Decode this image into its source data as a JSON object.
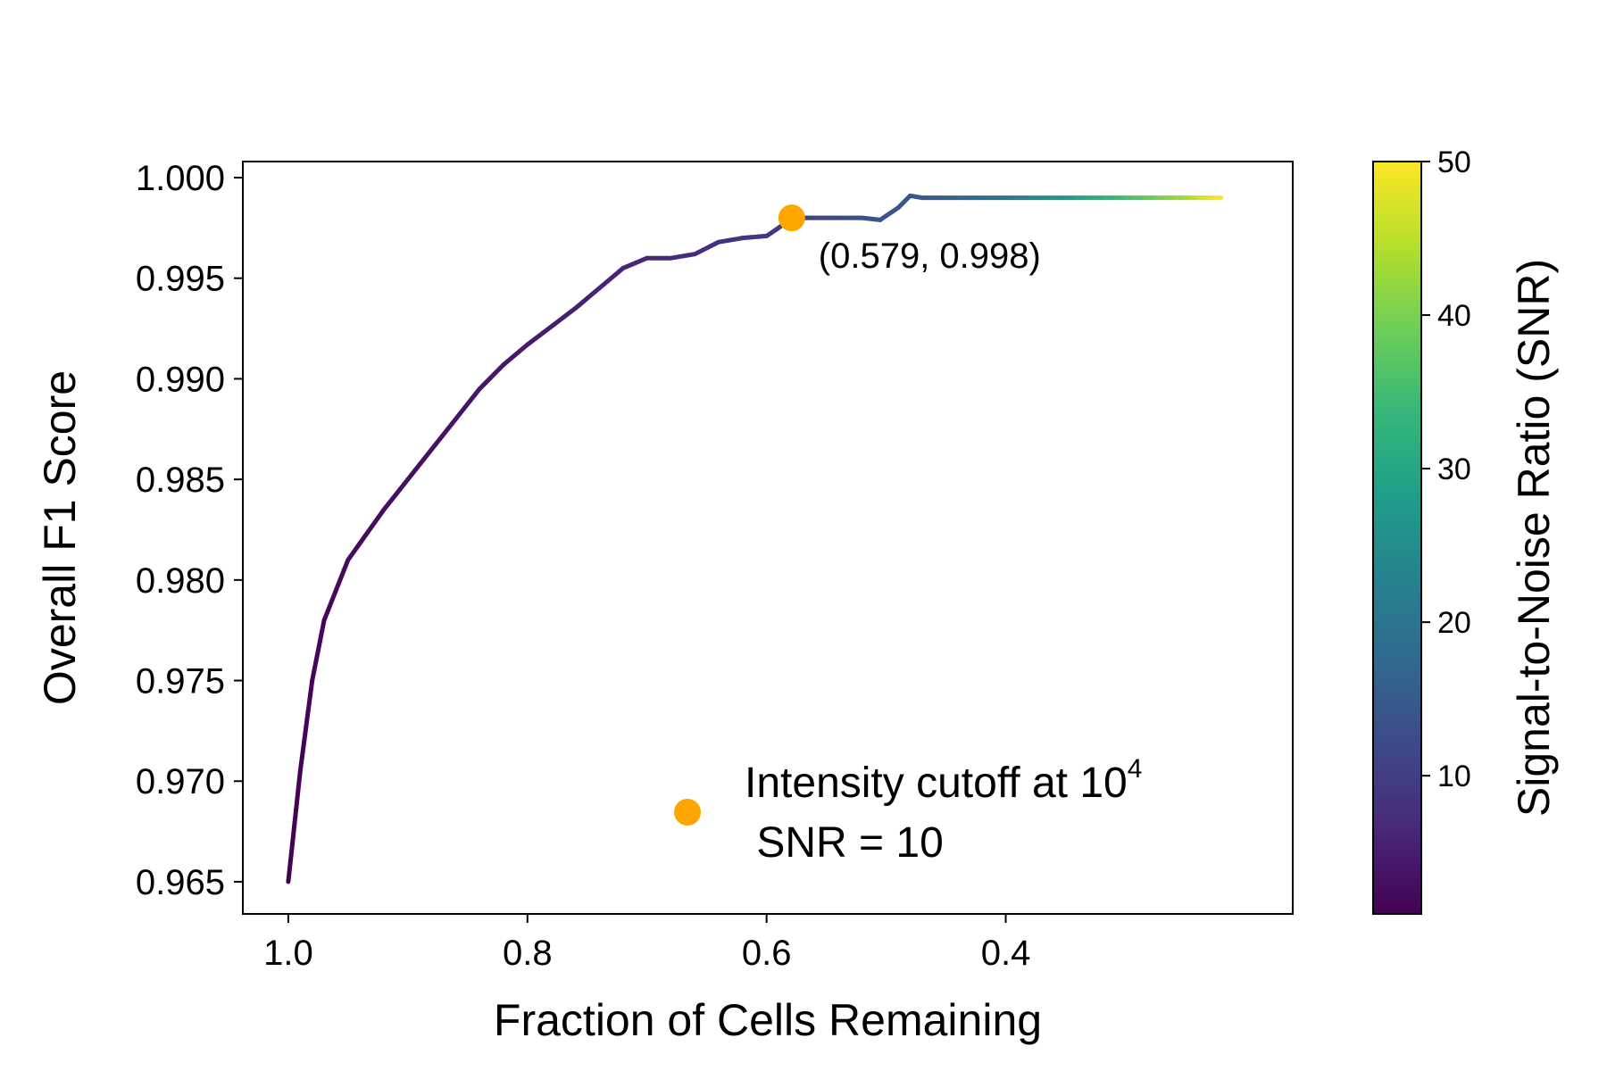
{
  "chart_data": {
    "type": "line",
    "title": "",
    "xlabel": "Fraction of Cells Remaining",
    "ylabel": "Overall F1 Score",
    "xlim": [
      1.038,
      0.16
    ],
    "ylim": [
      0.9634,
      1.0008
    ],
    "xticks": [
      1.0,
      0.8,
      0.6,
      0.4
    ],
    "xtick_labels": [
      "1.0",
      "0.8",
      "0.6",
      "0.4"
    ],
    "yticks": [
      0.965,
      0.97,
      0.975,
      0.98,
      0.985,
      0.99,
      0.995,
      1.0
    ],
    "ytick_labels": [
      "0.965",
      "0.970",
      "0.975",
      "0.980",
      "0.985",
      "0.990",
      "0.995",
      "1.000"
    ],
    "grid": false,
    "x_axis_inverted": true,
    "series": [
      {
        "colored_by": "snr",
        "colormap": "viridis",
        "points": [
          {
            "x": 1.0,
            "y": 0.965,
            "snr": 1
          },
          {
            "x": 0.99,
            "y": 0.9705,
            "snr": 1.3
          },
          {
            "x": 0.98,
            "y": 0.975,
            "snr": 1.6
          },
          {
            "x": 0.97,
            "y": 0.978,
            "snr": 1.9
          },
          {
            "x": 0.95,
            "y": 0.981,
            "snr": 2.3
          },
          {
            "x": 0.92,
            "y": 0.9835,
            "snr": 2.7
          },
          {
            "x": 0.9,
            "y": 0.985,
            "snr": 3.0
          },
          {
            "x": 0.88,
            "y": 0.9865,
            "snr": 3.3
          },
          {
            "x": 0.86,
            "y": 0.988,
            "snr": 3.6
          },
          {
            "x": 0.84,
            "y": 0.9895,
            "snr": 3.9
          },
          {
            "x": 0.82,
            "y": 0.9907,
            "snr": 4.2
          },
          {
            "x": 0.8,
            "y": 0.9917,
            "snr": 4.5
          },
          {
            "x": 0.78,
            "y": 0.9926,
            "snr": 4.9
          },
          {
            "x": 0.76,
            "y": 0.9935,
            "snr": 5.3
          },
          {
            "x": 0.74,
            "y": 0.9945,
            "snr": 5.7
          },
          {
            "x": 0.72,
            "y": 0.9955,
            "snr": 6.1
          },
          {
            "x": 0.7,
            "y": 0.996,
            "snr": 6.5
          },
          {
            "x": 0.68,
            "y": 0.996,
            "snr": 6.9
          },
          {
            "x": 0.66,
            "y": 0.9962,
            "snr": 7.4
          },
          {
            "x": 0.64,
            "y": 0.9968,
            "snr": 7.9
          },
          {
            "x": 0.62,
            "y": 0.997,
            "snr": 8.4
          },
          {
            "x": 0.6,
            "y": 0.9971,
            "snr": 9.0
          },
          {
            "x": 0.59,
            "y": 0.9975,
            "snr": 9.5
          },
          {
            "x": 0.579,
            "y": 0.998,
            "snr": 10
          },
          {
            "x": 0.56,
            "y": 0.998,
            "snr": 11
          },
          {
            "x": 0.54,
            "y": 0.998,
            "snr": 12
          },
          {
            "x": 0.52,
            "y": 0.998,
            "snr": 12.8
          },
          {
            "x": 0.505,
            "y": 0.9979,
            "snr": 13.5
          },
          {
            "x": 0.49,
            "y": 0.9985,
            "snr": 14
          },
          {
            "x": 0.48,
            "y": 0.9991,
            "snr": 14.5
          },
          {
            "x": 0.47,
            "y": 0.999,
            "snr": 15
          },
          {
            "x": 0.45,
            "y": 0.999,
            "snr": 16
          },
          {
            "x": 0.4,
            "y": 0.999,
            "snr": 20
          },
          {
            "x": 0.35,
            "y": 0.999,
            "snr": 27
          },
          {
            "x": 0.3,
            "y": 0.999,
            "snr": 35
          },
          {
            "x": 0.25,
            "y": 0.999,
            "snr": 43
          },
          {
            "x": 0.22,
            "y": 0.999,
            "snr": 50
          }
        ]
      }
    ],
    "highlight_point": {
      "x": 0.579,
      "y": 0.998,
      "color": "#FFA500"
    },
    "annotation": "(0.579, 0.998)",
    "legend": {
      "placement": "lower-right",
      "marker_color": "#FFA500",
      "line1_prefix": "Intensity cutoff at ",
      "line1_base": "10",
      "line1_exponent": "4",
      "line2": " SNR = 10"
    },
    "colorbar": {
      "label": "Signal-to-Noise Ratio (SNR)",
      "colormap": "viridis",
      "range": [
        1,
        50
      ],
      "ticks": [
        10,
        20,
        30,
        40,
        50
      ],
      "tick_labels": [
        "10",
        "20",
        "30",
        "40",
        "50"
      ],
      "viridis_stops": [
        "#440154",
        "#482878",
        "#3e4989",
        "#31688e",
        "#26828e",
        "#1f9e89",
        "#35b779",
        "#6ece58",
        "#b5de2b",
        "#fde725"
      ]
    }
  }
}
